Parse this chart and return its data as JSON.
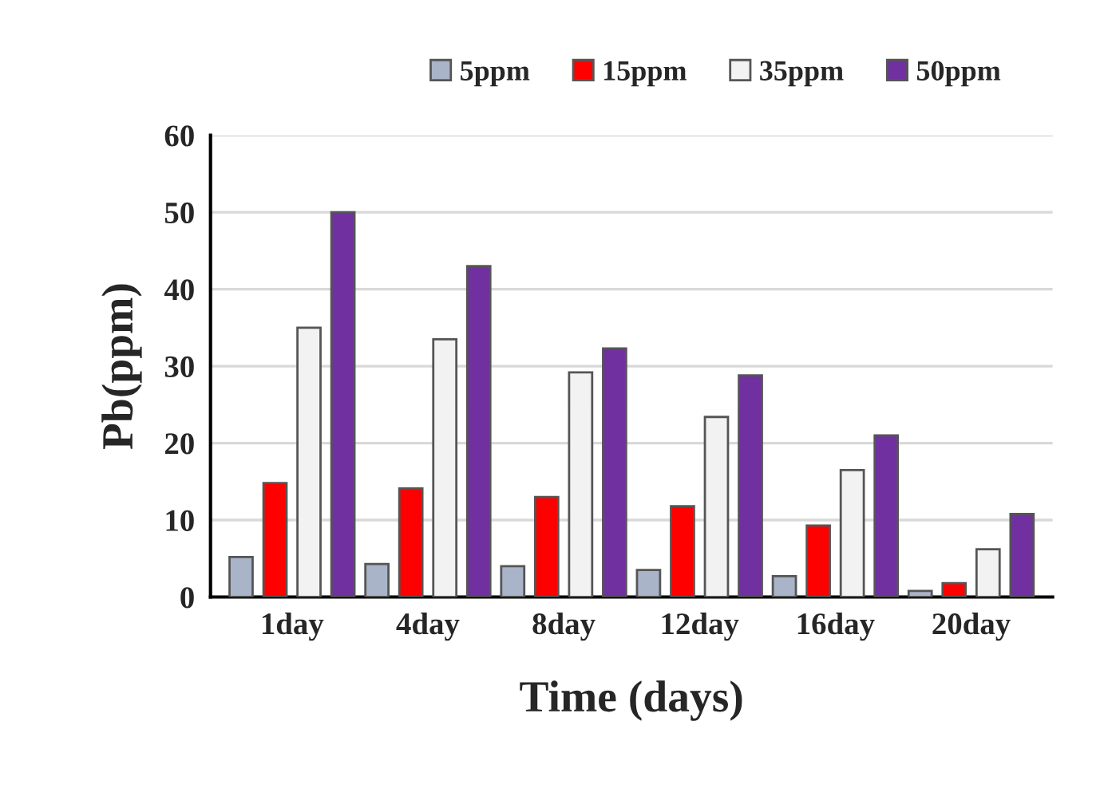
{
  "chart_data": {
    "type": "bar",
    "xlabel": "Time (days)",
    "ylabel": "Pb(ppm)",
    "categories": [
      "1day",
      "4day",
      "8day",
      "12day",
      "16day",
      "20day"
    ],
    "series": [
      {
        "name": "5ppm",
        "color": "#a9b4c8",
        "values": [
          5.2,
          4.3,
          4.0,
          3.5,
          2.7,
          0.8
        ]
      },
      {
        "name": "15ppm",
        "color": "#ff0000",
        "values": [
          14.8,
          14.1,
          13.0,
          11.8,
          9.3,
          1.8
        ]
      },
      {
        "name": "35ppm",
        "color": "#f2f2f2",
        "values": [
          35.0,
          33.5,
          29.2,
          23.4,
          16.5,
          6.2
        ]
      },
      {
        "name": "50ppm",
        "color": "#7030a0",
        "values": [
          50.0,
          43.0,
          32.3,
          28.8,
          21.0,
          10.8
        ]
      }
    ],
    "ylim": [
      0,
      60
    ],
    "yticks": [
      0,
      10,
      20,
      30,
      40,
      50,
      60
    ],
    "grid": "y",
    "legend": "top"
  }
}
